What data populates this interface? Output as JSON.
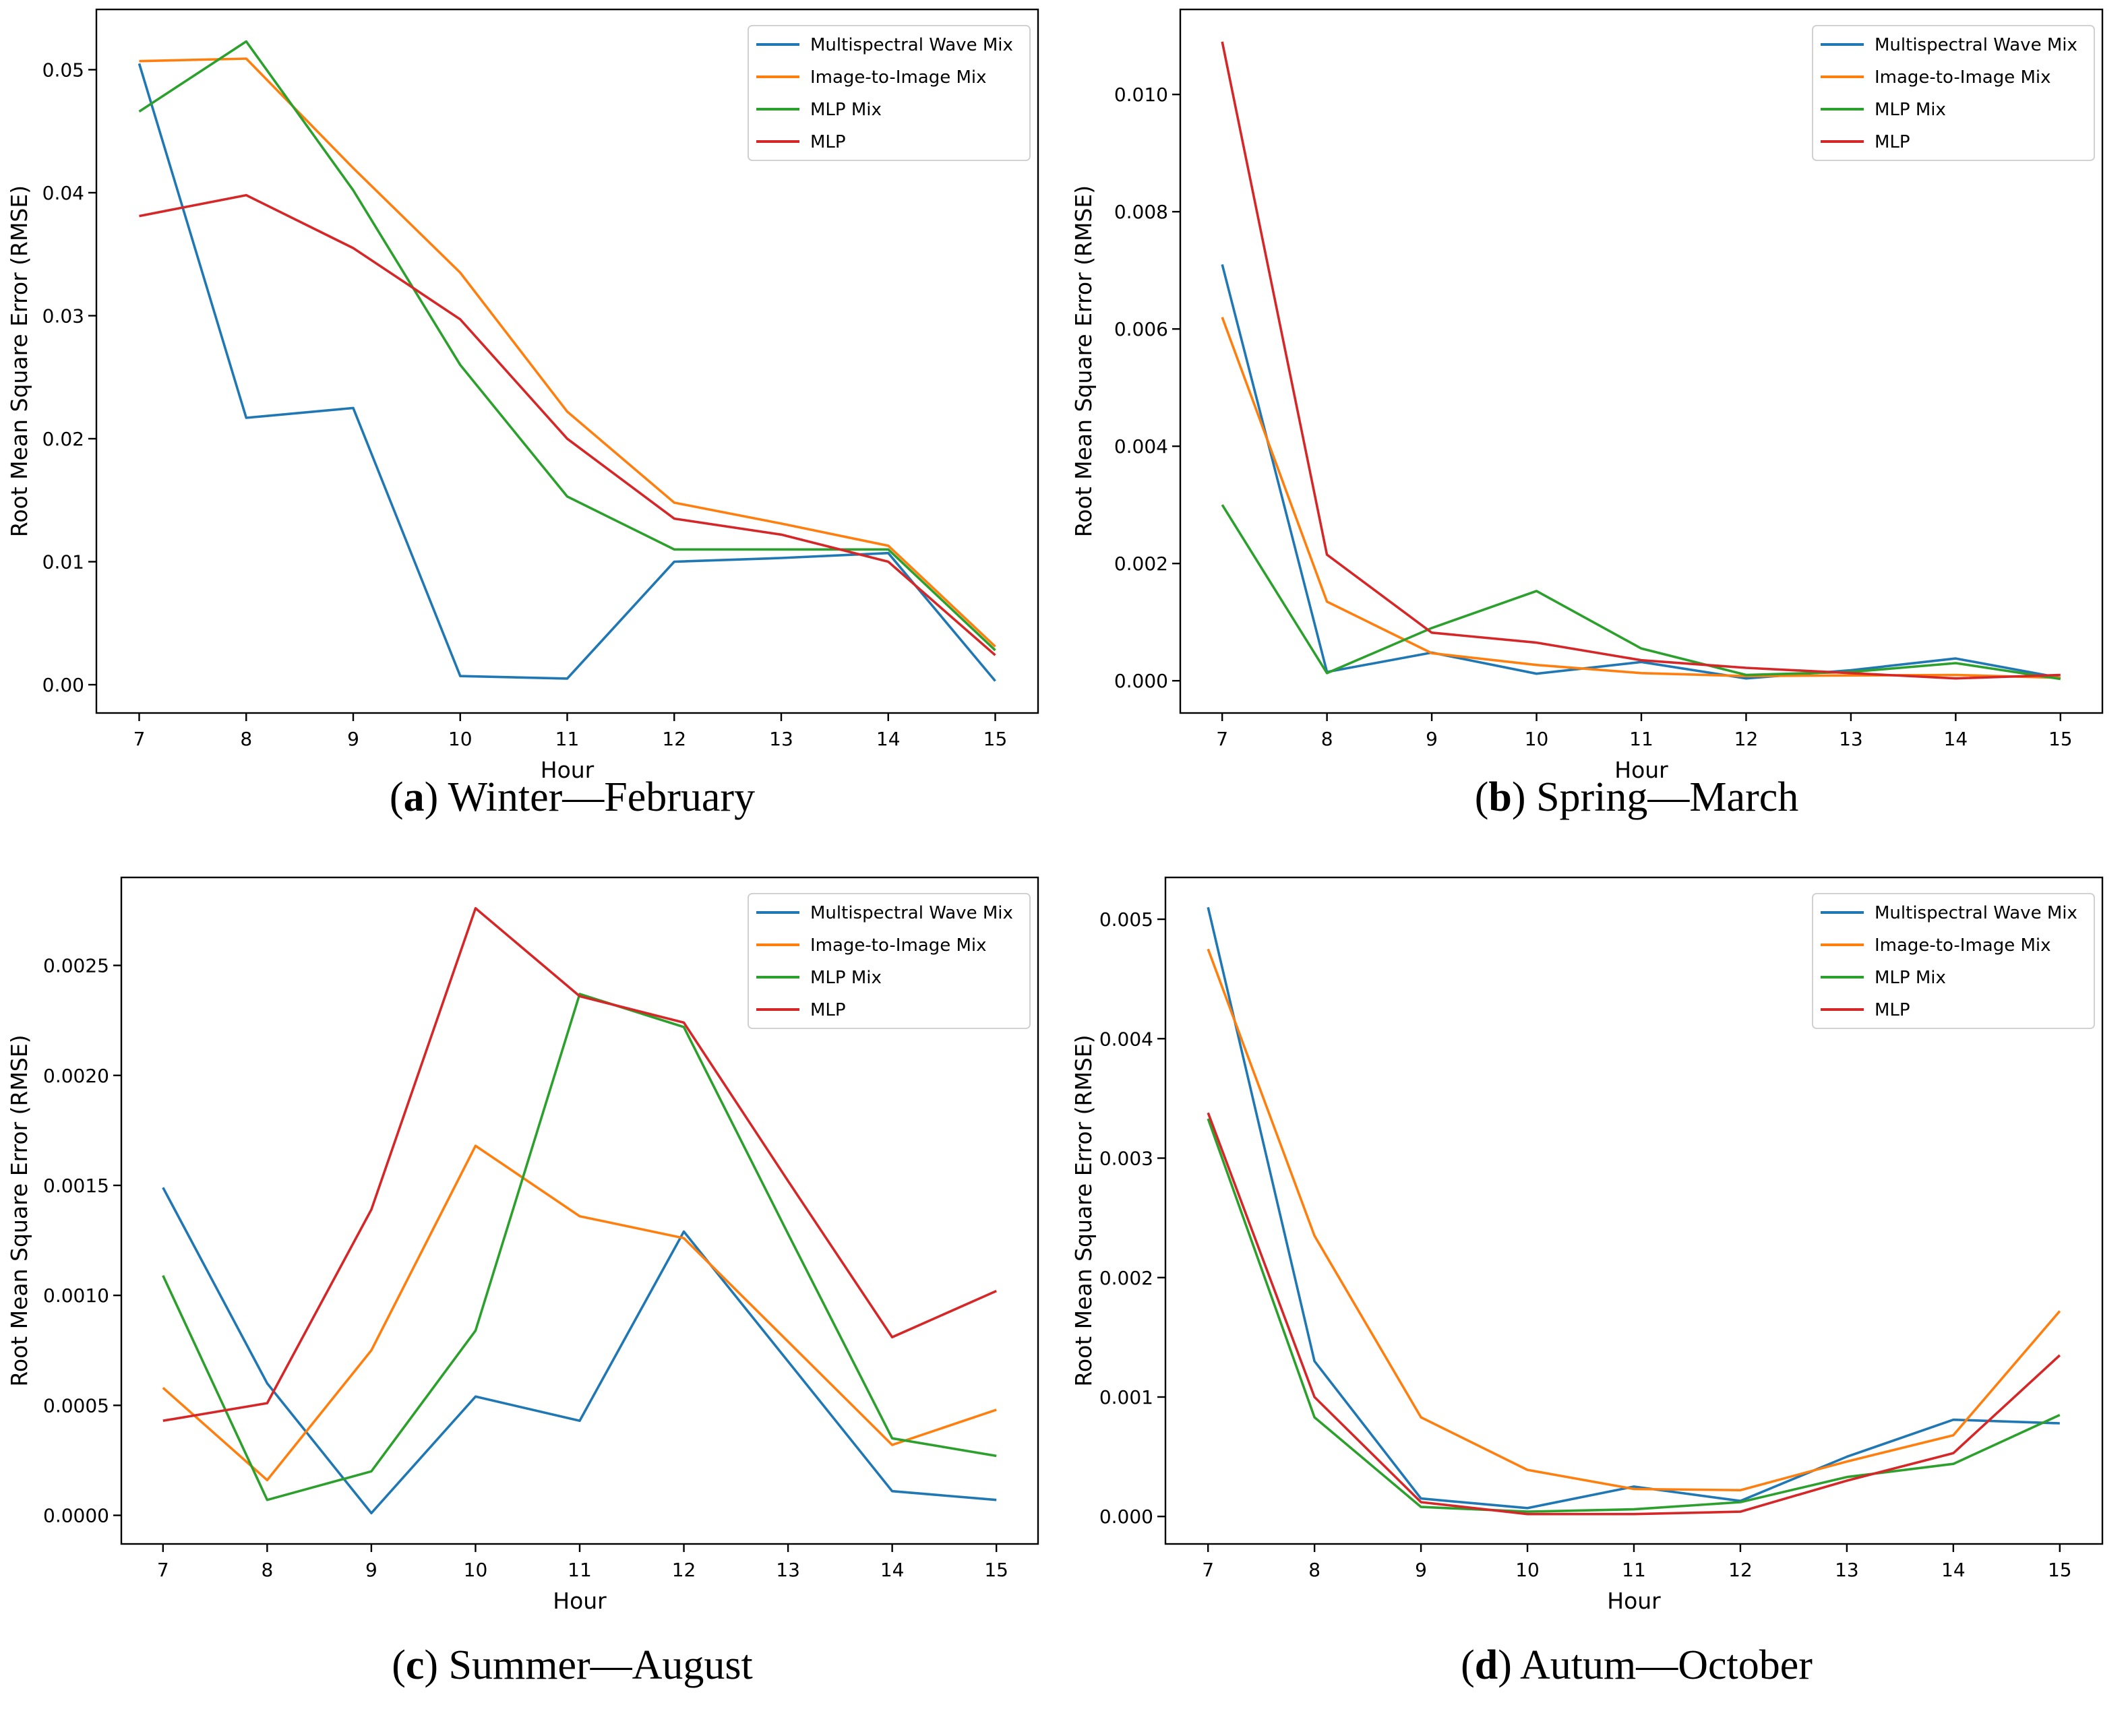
{
  "figure": {
    "caption_open": "(",
    "caption_close": ") ",
    "x_label": "Hour",
    "y_label": "Root Mean Square Error (RMSE)",
    "hours": [
      7,
      8,
      9,
      10,
      11,
      12,
      13,
      14,
      15
    ],
    "colors": {
      "blue": "#1f77b4",
      "orange": "#ff7f0e",
      "green": "#2ca02c",
      "red": "#d62728",
      "axis": "#000000",
      "legend_border": "#cccccc"
    }
  },
  "chart_data": [
    {
      "id": "a",
      "type": "line",
      "caption_letter": "a",
      "caption_title": "Winter—February",
      "xlabel": "Hour",
      "ylabel": "Root Mean Square Error (RMSE)",
      "x": [
        7,
        8,
        9,
        10,
        11,
        12,
        13,
        14,
        15
      ],
      "xlim": [
        6.6,
        15.4
      ],
      "ylim": [
        -0.0023,
        0.0549
      ],
      "grid": false,
      "legend_position": "upper right",
      "yticks": [
        {
          "v": 0.0,
          "label": "0.00"
        },
        {
          "v": 0.01,
          "label": "0.01"
        },
        {
          "v": 0.02,
          "label": "0.02"
        },
        {
          "v": 0.03,
          "label": "0.03"
        },
        {
          "v": 0.04,
          "label": "0.04"
        },
        {
          "v": 0.05,
          "label": "0.05"
        }
      ],
      "series": [
        {
          "name": "Multispectral Wave Mix",
          "color": "#1f77b4",
          "values": [
            0.0505,
            0.0217,
            0.0225,
            0.0007,
            0.0005,
            0.01,
            0.0103,
            0.0107,
            0.0003
          ]
        },
        {
          "name": "Image-to-Image Mix",
          "color": "#ff7f0e",
          "values": [
            0.0507,
            0.0509,
            0.042,
            0.0335,
            0.0222,
            0.0148,
            0.0131,
            0.0113,
            0.0031
          ]
        },
        {
          "name": "MLP Mix",
          "color": "#2ca02c",
          "values": [
            0.0466,
            0.0523,
            0.0402,
            0.026,
            0.0153,
            0.011,
            0.011,
            0.011,
            0.0028
          ]
        },
        {
          "name": "MLP",
          "color": "#d62728",
          "values": [
            0.0381,
            0.0398,
            0.0355,
            0.0297,
            0.02,
            0.0135,
            0.0122,
            0.01,
            0.0024
          ]
        }
      ]
    },
    {
      "id": "b",
      "type": "line",
      "caption_letter": "b",
      "caption_title": "Spring—March",
      "xlabel": "Hour",
      "ylabel": "Root Mean Square Error (RMSE)",
      "x": [
        7,
        8,
        9,
        10,
        11,
        12,
        13,
        14,
        15
      ],
      "xlim": [
        6.6,
        15.4
      ],
      "ylim": [
        -0.00055,
        0.01145
      ],
      "grid": false,
      "legend_position": "upper right",
      "yticks": [
        {
          "v": 0.0,
          "label": "0.000"
        },
        {
          "v": 0.002,
          "label": "0.002"
        },
        {
          "v": 0.004,
          "label": "0.004"
        },
        {
          "v": 0.006,
          "label": "0.006"
        },
        {
          "v": 0.008,
          "label": "0.008"
        },
        {
          "v": 0.01,
          "label": "0.010"
        }
      ],
      "series": [
        {
          "name": "Multispectral Wave Mix",
          "color": "#1f77b4",
          "values": [
            0.0071,
            0.00015,
            0.00048,
            0.00012,
            0.00032,
            4e-05,
            0.00018,
            0.00038,
            5e-05
          ]
        },
        {
          "name": "Image-to-Image Mix",
          "color": "#ff7f0e",
          "values": [
            0.0062,
            0.00135,
            0.00047,
            0.00027,
            0.00013,
            8e-05,
            9e-05,
            0.0001,
            5e-05
          ]
        },
        {
          "name": "MLP Mix",
          "color": "#2ca02c",
          "values": [
            0.003,
            0.00013,
            0.0009,
            0.00153,
            0.00055,
            0.0001,
            0.00015,
            0.0003,
            3e-05
          ]
        },
        {
          "name": "MLP",
          "color": "#d62728",
          "values": [
            0.0109,
            0.00215,
            0.00082,
            0.00065,
            0.00035,
            0.00022,
            0.00013,
            4e-05,
            0.0001
          ]
        }
      ]
    },
    {
      "id": "c",
      "type": "line",
      "caption_letter": "c",
      "caption_title": "Summer—August",
      "xlabel": "Hour",
      "ylabel": "Root Mean Square Error (RMSE)",
      "x": [
        7,
        8,
        9,
        10,
        11,
        12,
        13,
        14,
        15
      ],
      "xlim": [
        6.6,
        15.4
      ],
      "ylim": [
        -0.00013,
        0.0029
      ],
      "grid": false,
      "legend_position": "upper right",
      "yticks": [
        {
          "v": 0.0,
          "label": "0.0000"
        },
        {
          "v": 0.0005,
          "label": "0.0005"
        },
        {
          "v": 0.001,
          "label": "0.0010"
        },
        {
          "v": 0.0015,
          "label": "0.0015"
        },
        {
          "v": 0.002,
          "label": "0.0020"
        },
        {
          "v": 0.0025,
          "label": "0.0025"
        }
      ],
      "series": [
        {
          "name": "Multispectral Wave Mix",
          "color": "#1f77b4",
          "values": [
            0.00149,
            0.0006,
            1e-05,
            0.00054,
            0.00043,
            0.00129,
            0.0007,
            0.00011,
            7e-05
          ]
        },
        {
          "name": "Image-to-Image Mix",
          "color": "#ff7f0e",
          "values": [
            0.00058,
            0.00016,
            0.00075,
            0.00168,
            0.00136,
            0.00126,
            0.00079,
            0.00032,
            0.00048
          ]
        },
        {
          "name": "MLP Mix",
          "color": "#2ca02c",
          "values": [
            0.00109,
            7e-05,
            0.0002,
            0.00084,
            0.00237,
            0.00222,
            0.00128,
            0.00035,
            0.00027
          ]
        },
        {
          "name": "MLP",
          "color": "#d62728",
          "values": [
            0.00043,
            0.00051,
            0.00139,
            0.00276,
            0.00236,
            0.00224,
            0.00152,
            0.00081,
            0.00102
          ]
        }
      ]
    },
    {
      "id": "d",
      "type": "line",
      "caption_letter": "d",
      "caption_title": "Autum—October",
      "xlabel": "Hour",
      "ylabel": "Root Mean Square Error (RMSE)",
      "x": [
        7,
        8,
        9,
        10,
        11,
        12,
        13,
        14,
        15
      ],
      "xlim": [
        6.6,
        15.4
      ],
      "ylim": [
        -0.00023,
        0.00535
      ],
      "grid": false,
      "legend_position": "upper right",
      "yticks": [
        {
          "v": 0.0,
          "label": "0.000"
        },
        {
          "v": 0.001,
          "label": "0.001"
        },
        {
          "v": 0.002,
          "label": "0.002"
        },
        {
          "v": 0.003,
          "label": "0.003"
        },
        {
          "v": 0.004,
          "label": "0.004"
        },
        {
          "v": 0.005,
          "label": "0.005"
        }
      ],
      "series": [
        {
          "name": "Multispectral Wave Mix",
          "color": "#1f77b4",
          "values": [
            0.0051,
            0.0013,
            0.00015,
            7e-05,
            0.00025,
            0.00013,
            0.0005,
            0.00081,
            0.00078
          ]
        },
        {
          "name": "Image-to-Image Mix",
          "color": "#ff7f0e",
          "values": [
            0.00475,
            0.00235,
            0.00083,
            0.00039,
            0.00023,
            0.00022,
            0.00046,
            0.00068,
            0.00172
          ]
        },
        {
          "name": "MLP Mix",
          "color": "#2ca02c",
          "values": [
            0.00333,
            0.00083,
            8e-05,
            4e-05,
            6e-05,
            0.00012,
            0.00033,
            0.00044,
            0.00085
          ]
        },
        {
          "name": "MLP",
          "color": "#d62728",
          "values": [
            0.00338,
            0.001,
            0.00012,
            2e-05,
            2e-05,
            4e-05,
            0.0003,
            0.00053,
            0.00135
          ]
        }
      ]
    }
  ]
}
